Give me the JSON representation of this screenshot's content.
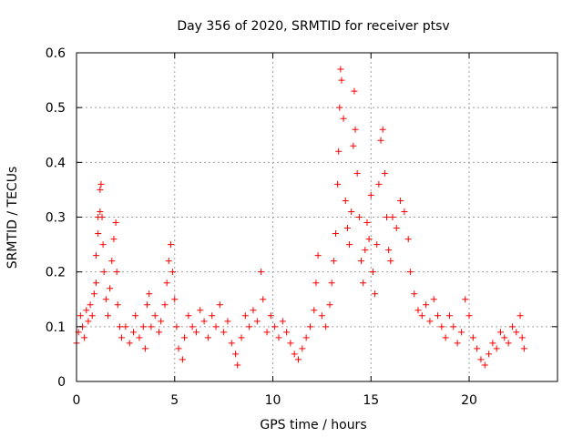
{
  "chart_data": {
    "type": "scatter",
    "title": "Day 356 of 2020, SRMTID for receiver ptsv",
    "xlabel": "GPS time / hours",
    "ylabel": "SRMTID / TECUs",
    "xlim": [
      0,
      24.5
    ],
    "ylim": [
      0,
      0.6
    ],
    "x_ticks": [
      0,
      5,
      10,
      15,
      20
    ],
    "x_tick_labels": [
      "0",
      "5",
      "10",
      "15",
      "20"
    ],
    "y_ticks": [
      0,
      0.1,
      0.2,
      0.3,
      0.4,
      0.5,
      0.6
    ],
    "y_tick_labels": [
      "0",
      "0.1",
      "0.2",
      "0.3",
      "0.4",
      "0.5",
      "0.6"
    ],
    "grid": true,
    "marker": "plus",
    "series_color": "#ff0000",
    "series": [
      {
        "name": "SRMTID",
        "points": [
          [
            0.0,
            0.07
          ],
          [
            0.1,
            0.09
          ],
          [
            0.2,
            0.12
          ],
          [
            0.3,
            0.1
          ],
          [
            0.4,
            0.08
          ],
          [
            0.5,
            0.13
          ],
          [
            0.6,
            0.11
          ],
          [
            0.7,
            0.14
          ],
          [
            0.8,
            0.12
          ],
          [
            0.9,
            0.16
          ],
          [
            1.0,
            0.18
          ],
          [
            1.0,
            0.23
          ],
          [
            1.1,
            0.27
          ],
          [
            1.1,
            0.3
          ],
          [
            1.2,
            0.31
          ],
          [
            1.2,
            0.35
          ],
          [
            1.25,
            0.36
          ],
          [
            1.3,
            0.3
          ],
          [
            1.35,
            0.25
          ],
          [
            1.4,
            0.2
          ],
          [
            1.5,
            0.15
          ],
          [
            1.6,
            0.12
          ],
          [
            1.7,
            0.17
          ],
          [
            1.8,
            0.22
          ],
          [
            1.9,
            0.26
          ],
          [
            2.0,
            0.29
          ],
          [
            2.05,
            0.2
          ],
          [
            2.1,
            0.14
          ],
          [
            2.2,
            0.1
          ],
          [
            2.3,
            0.08
          ],
          [
            2.5,
            0.1
          ],
          [
            2.7,
            0.07
          ],
          [
            2.9,
            0.09
          ],
          [
            3.0,
            0.12
          ],
          [
            3.2,
            0.08
          ],
          [
            3.4,
            0.1
          ],
          [
            3.5,
            0.06
          ],
          [
            3.6,
            0.14
          ],
          [
            3.7,
            0.16
          ],
          [
            3.8,
            0.1
          ],
          [
            4.0,
            0.12
          ],
          [
            4.2,
            0.09
          ],
          [
            4.3,
            0.11
          ],
          [
            4.5,
            0.14
          ],
          [
            4.6,
            0.18
          ],
          [
            4.7,
            0.22
          ],
          [
            4.8,
            0.25
          ],
          [
            4.9,
            0.2
          ],
          [
            5.0,
            0.15
          ],
          [
            5.1,
            0.1
          ],
          [
            5.2,
            0.06
          ],
          [
            5.4,
            0.04
          ],
          [
            5.5,
            0.08
          ],
          [
            5.7,
            0.12
          ],
          [
            5.9,
            0.1
          ],
          [
            6.1,
            0.09
          ],
          [
            6.3,
            0.13
          ],
          [
            6.5,
            0.11
          ],
          [
            6.7,
            0.08
          ],
          [
            6.9,
            0.12
          ],
          [
            7.1,
            0.1
          ],
          [
            7.3,
            0.14
          ],
          [
            7.5,
            0.09
          ],
          [
            7.7,
            0.11
          ],
          [
            7.9,
            0.07
          ],
          [
            8.1,
            0.05
          ],
          [
            8.2,
            0.03
          ],
          [
            8.4,
            0.08
          ],
          [
            8.6,
            0.12
          ],
          [
            8.8,
            0.1
          ],
          [
            9.0,
            0.13
          ],
          [
            9.2,
            0.11
          ],
          [
            9.4,
            0.2
          ],
          [
            9.5,
            0.15
          ],
          [
            9.7,
            0.09
          ],
          [
            9.9,
            0.12
          ],
          [
            10.1,
            0.1
          ],
          [
            10.3,
            0.08
          ],
          [
            10.5,
            0.11
          ],
          [
            10.7,
            0.09
          ],
          [
            10.9,
            0.07
          ],
          [
            11.1,
            0.05
          ],
          [
            11.3,
            0.04
          ],
          [
            11.5,
            0.06
          ],
          [
            11.7,
            0.08
          ],
          [
            11.9,
            0.1
          ],
          [
            12.1,
            0.13
          ],
          [
            12.2,
            0.18
          ],
          [
            12.3,
            0.23
          ],
          [
            12.5,
            0.12
          ],
          [
            12.7,
            0.1
          ],
          [
            12.9,
            0.14
          ],
          [
            13.0,
            0.18
          ],
          [
            13.1,
            0.22
          ],
          [
            13.2,
            0.27
          ],
          [
            13.3,
            0.36
          ],
          [
            13.35,
            0.42
          ],
          [
            13.4,
            0.5
          ],
          [
            13.45,
            0.57
          ],
          [
            13.5,
            0.55
          ],
          [
            13.6,
            0.48
          ],
          [
            13.7,
            0.33
          ],
          [
            13.8,
            0.28
          ],
          [
            13.9,
            0.25
          ],
          [
            14.0,
            0.31
          ],
          [
            14.1,
            0.43
          ],
          [
            14.15,
            0.53
          ],
          [
            14.2,
            0.46
          ],
          [
            14.3,
            0.38
          ],
          [
            14.4,
            0.3
          ],
          [
            14.5,
            0.22
          ],
          [
            14.6,
            0.18
          ],
          [
            14.7,
            0.24
          ],
          [
            14.8,
            0.29
          ],
          [
            14.9,
            0.26
          ],
          [
            15.0,
            0.34
          ],
          [
            15.1,
            0.2
          ],
          [
            15.2,
            0.16
          ],
          [
            15.3,
            0.25
          ],
          [
            15.4,
            0.36
          ],
          [
            15.5,
            0.44
          ],
          [
            15.6,
            0.46
          ],
          [
            15.7,
            0.38
          ],
          [
            15.8,
            0.3
          ],
          [
            15.9,
            0.24
          ],
          [
            16.0,
            0.22
          ],
          [
            16.1,
            0.3
          ],
          [
            16.3,
            0.28
          ],
          [
            16.5,
            0.33
          ],
          [
            16.7,
            0.31
          ],
          [
            16.9,
            0.26
          ],
          [
            17.0,
            0.2
          ],
          [
            17.2,
            0.16
          ],
          [
            17.4,
            0.13
          ],
          [
            17.6,
            0.12
          ],
          [
            17.8,
            0.14
          ],
          [
            18.0,
            0.11
          ],
          [
            18.2,
            0.15
          ],
          [
            18.4,
            0.12
          ],
          [
            18.6,
            0.1
          ],
          [
            18.8,
            0.08
          ],
          [
            19.0,
            0.12
          ],
          [
            19.2,
            0.1
          ],
          [
            19.4,
            0.07
          ],
          [
            19.6,
            0.09
          ],
          [
            19.8,
            0.15
          ],
          [
            20.0,
            0.12
          ],
          [
            20.2,
            0.08
          ],
          [
            20.4,
            0.06
          ],
          [
            20.6,
            0.04
          ],
          [
            20.8,
            0.03
          ],
          [
            21.0,
            0.05
          ],
          [
            21.2,
            0.07
          ],
          [
            21.4,
            0.06
          ],
          [
            21.6,
            0.09
          ],
          [
            21.8,
            0.08
          ],
          [
            22.0,
            0.07
          ],
          [
            22.2,
            0.1
          ],
          [
            22.4,
            0.09
          ],
          [
            22.6,
            0.12
          ],
          [
            22.7,
            0.08
          ],
          [
            22.8,
            0.06
          ]
        ]
      }
    ]
  }
}
